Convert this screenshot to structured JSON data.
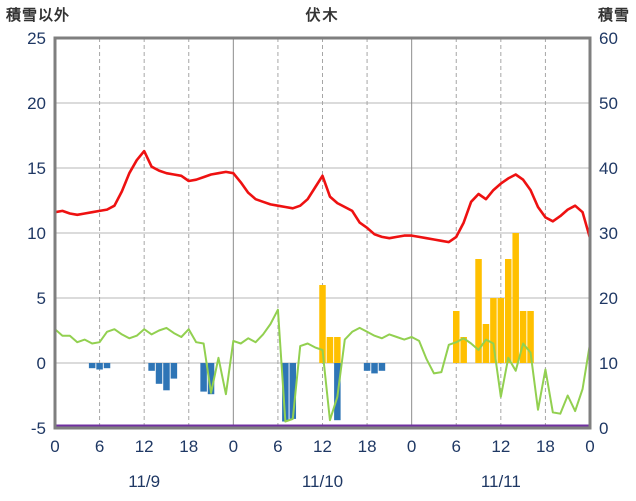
{
  "header": {
    "left_axis_title": "積雪以外",
    "title": "伏木",
    "right_axis_title": "積雪"
  },
  "chart_data": {
    "type": "line+bar",
    "title": "伏木",
    "left_axis_title": "積雪以外",
    "right_axis_title": "積雪",
    "hours_max": 72,
    "left_axis": {
      "min": -5,
      "max": 25,
      "ticks": [
        25,
        20,
        15,
        10,
        5,
        0,
        -5
      ],
      "grid": [
        20,
        15,
        10,
        5,
        0
      ]
    },
    "right_axis": {
      "min": 0,
      "max": 60,
      "ticks": [
        60,
        50,
        40,
        30,
        20,
        10,
        0
      ]
    },
    "x_tick_hours": [
      0,
      6,
      12,
      18,
      24,
      30,
      36,
      42,
      48,
      54,
      60,
      66,
      72
    ],
    "x_tick_labels": [
      "0",
      "6",
      "12",
      "18",
      "0",
      "6",
      "12",
      "18",
      "0",
      "6",
      "12",
      "18",
      "0"
    ],
    "x_grid_dashed": [
      6,
      12,
      18,
      30,
      36,
      42,
      54,
      60,
      66
    ],
    "x_grid_solid": [
      24,
      48
    ],
    "date_labels": [
      "11/9",
      "11/10",
      "11/11"
    ],
    "style": {
      "text_color": "#1f3864",
      "grid_color": "#b7b7b7",
      "grid_dash_color": "#a6a6a6",
      "day_line_color": "#8c8c8c",
      "border_color": "#7f7f7f",
      "background": "#ffffff"
    },
    "series": [
      {
        "name": "orange-bars",
        "type": "bar",
        "axis": "left",
        "color": "#ffc000",
        "x": [
          36,
          37,
          38,
          54,
          55,
          57,
          58,
          59,
          60,
          61,
          62,
          63,
          64
        ],
        "values": [
          6,
          2,
          2,
          4,
          2,
          8,
          3,
          5,
          5,
          8,
          10,
          4,
          4
        ]
      },
      {
        "name": "blue-bars",
        "type": "bar",
        "axis": "left",
        "color": "#2e75b6",
        "x": [
          5,
          6,
          7,
          13,
          14,
          15,
          16,
          20,
          21,
          31,
          32,
          38,
          42,
          43,
          44
        ],
        "values": [
          -0.4,
          -0.5,
          -0.4,
          -0.6,
          -1.6,
          -2.1,
          -1.2,
          -2.2,
          -2.4,
          -4.5,
          -4.3,
          -4.4,
          -0.6,
          -0.8,
          -0.6
        ]
      },
      {
        "name": "snow-depth-line",
        "type": "hline",
        "axis": "right",
        "color": "#7030a0",
        "width": 2.5,
        "value": 0
      },
      {
        "name": "green-line",
        "type": "line",
        "axis": "left",
        "color": "#92d050",
        "width": 2,
        "values": [
          2.6,
          2.1,
          2.1,
          1.6,
          1.8,
          1.5,
          1.6,
          2.4,
          2.6,
          2.2,
          1.9,
          2.1,
          2.6,
          2.2,
          2.5,
          2.7,
          2.3,
          2.0,
          2.6,
          1.6,
          1.5,
          -2.3,
          0.4,
          -2.4,
          1.7,
          1.5,
          1.9,
          1.6,
          2.2,
          3.0,
          4.1,
          -4.5,
          -4.3,
          1.3,
          1.5,
          1.2,
          1.0,
          -4.4,
          -2.6,
          1.8,
          2.4,
          2.7,
          2.4,
          2.1,
          1.9,
          2.2,
          2.0,
          1.8,
          2.0,
          1.7,
          0.3,
          -0.8,
          -0.7,
          1.4,
          1.6,
          1.9,
          1.5,
          1.0,
          1.8,
          1.5,
          -2.6,
          0.4,
          -0.6,
          1.5,
          0.8,
          -3.6,
          -0.5,
          -3.8,
          -3.9,
          -2.5,
          -3.7,
          -2.0,
          1.5
        ]
      },
      {
        "name": "temperature-line",
        "type": "line",
        "axis": "left",
        "color": "#ee1111",
        "width": 2.6,
        "values": [
          11.6,
          11.7,
          11.5,
          11.4,
          11.5,
          11.6,
          11.7,
          11.8,
          12.1,
          13.2,
          14.6,
          15.6,
          16.3,
          15.1,
          14.8,
          14.6,
          14.5,
          14.4,
          14.0,
          14.1,
          14.3,
          14.5,
          14.6,
          14.7,
          14.6,
          13.9,
          13.1,
          12.6,
          12.4,
          12.2,
          12.1,
          12.0,
          11.9,
          12.1,
          12.6,
          13.5,
          14.4,
          12.8,
          12.3,
          12.0,
          11.7,
          10.8,
          10.4,
          9.9,
          9.7,
          9.6,
          9.7,
          9.8,
          9.8,
          9.7,
          9.6,
          9.5,
          9.4,
          9.3,
          9.7,
          10.8,
          12.4,
          13.0,
          12.6,
          13.3,
          13.8,
          14.2,
          14.5,
          14.1,
          13.3,
          12.0,
          11.2,
          10.9,
          11.3,
          11.8,
          12.1,
          11.6,
          9.6
        ]
      }
    ]
  }
}
